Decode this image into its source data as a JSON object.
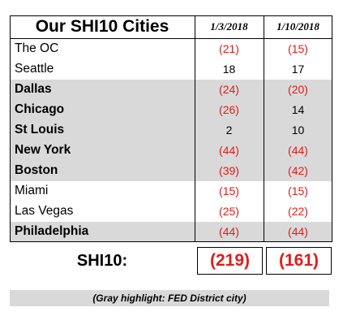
{
  "title": "Our SHI10 Cities",
  "dates": [
    "1/3/2018",
    "1/10/2018"
  ],
  "rows": [
    {
      "city": "The OC",
      "v1": "(21)",
      "v2": "(15)",
      "fed": false
    },
    {
      "city": "Seattle",
      "v1": "18",
      "v2": "17",
      "fed": false
    },
    {
      "city": "Dallas",
      "v1": "(24)",
      "v2": "(20)",
      "fed": true
    },
    {
      "city": "Chicago",
      "v1": "(26)",
      "v2": "14",
      "fed": true
    },
    {
      "city": "St Louis",
      "v1": "2",
      "v2": "10",
      "fed": true
    },
    {
      "city": "New York",
      "v1": "(44)",
      "v2": "(44)",
      "fed": true
    },
    {
      "city": "Boston",
      "v1": "(39)",
      "v2": "(42)",
      "fed": true
    },
    {
      "city": "Miami",
      "v1": "(15)",
      "v2": "(15)",
      "fed": false
    },
    {
      "city": "Las Vegas",
      "v1": "(25)",
      "v2": "(22)",
      "fed": false
    },
    {
      "city": "Philadelphia",
      "v1": "(44)",
      "v2": "(44)",
      "fed": true
    }
  ],
  "total": {
    "label": "SHI10:",
    "v1": "(219)",
    "v2": "(161)"
  },
  "note": "(Gray highlight:  FED District city)",
  "colors": {
    "negative": "#e21b1b",
    "highlight": "#d9d9d9"
  }
}
